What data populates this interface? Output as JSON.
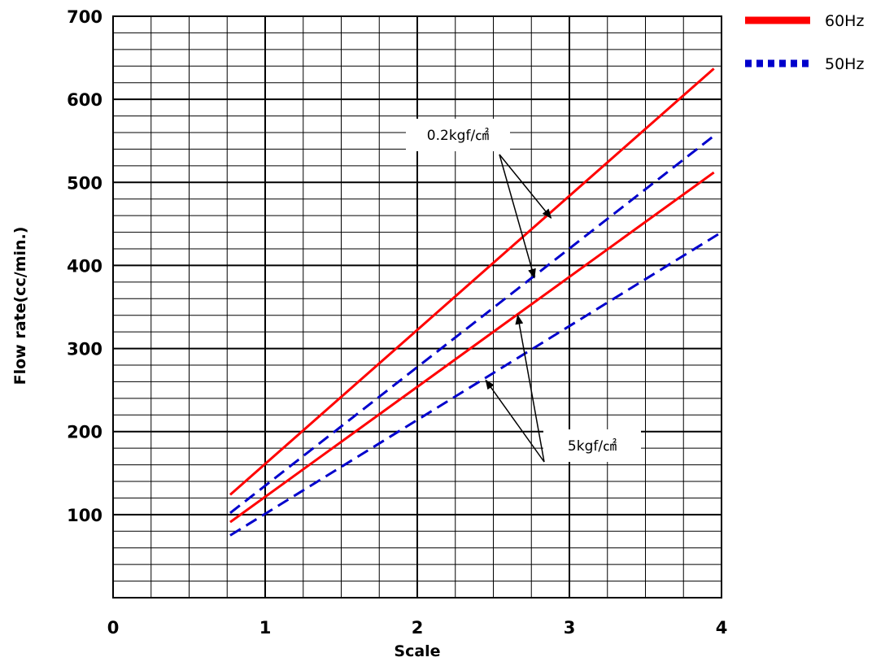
{
  "chart_data": {
    "type": "line",
    "xlabel": "Scale",
    "ylabel": "Flow rate(cc/min.)",
    "xlim": [
      0,
      4
    ],
    "ylim": [
      0,
      700
    ],
    "x_ticks": [
      "0",
      "1",
      "2",
      "3",
      "4"
    ],
    "y_ticks": [
      "100",
      "200",
      "300",
      "400",
      "500",
      "600",
      "700"
    ],
    "grid": true,
    "legend_position": "top-right",
    "legend": [
      {
        "name": "60Hz",
        "color": "#ff0000",
        "style": "solid"
      },
      {
        "name": "50Hz",
        "color": "#0000cc",
        "style": "dashed"
      }
    ],
    "series": [
      {
        "legend": "60Hz",
        "pressure": "0.2kgf/㎠",
        "x": [
          0.77,
          3.95
        ],
        "y": [
          124,
          637
        ]
      },
      {
        "legend": "50Hz",
        "pressure": "0.2kgf/㎠",
        "x": [
          0.77,
          3.95
        ],
        "y": [
          102,
          556
        ]
      },
      {
        "legend": "60Hz",
        "pressure": "5kgf/㎠",
        "x": [
          0.77,
          3.95
        ],
        "y": [
          91,
          512
        ]
      },
      {
        "legend": "50Hz",
        "pressure": "5kgf/㎠",
        "x": [
          0.77,
          4.0
        ],
        "y": [
          75,
          440
        ]
      }
    ],
    "annotations": [
      {
        "text": "0.2kgf/㎠",
        "targets": [
          {
            "x": 2.88,
            "y": 457
          },
          {
            "x": 2.77,
            "y": 385
          }
        ]
      },
      {
        "text": "5kgf/㎠",
        "targets": [
          {
            "x": 2.66,
            "y": 340
          },
          {
            "x": 2.45,
            "y": 262
          }
        ]
      }
    ]
  }
}
